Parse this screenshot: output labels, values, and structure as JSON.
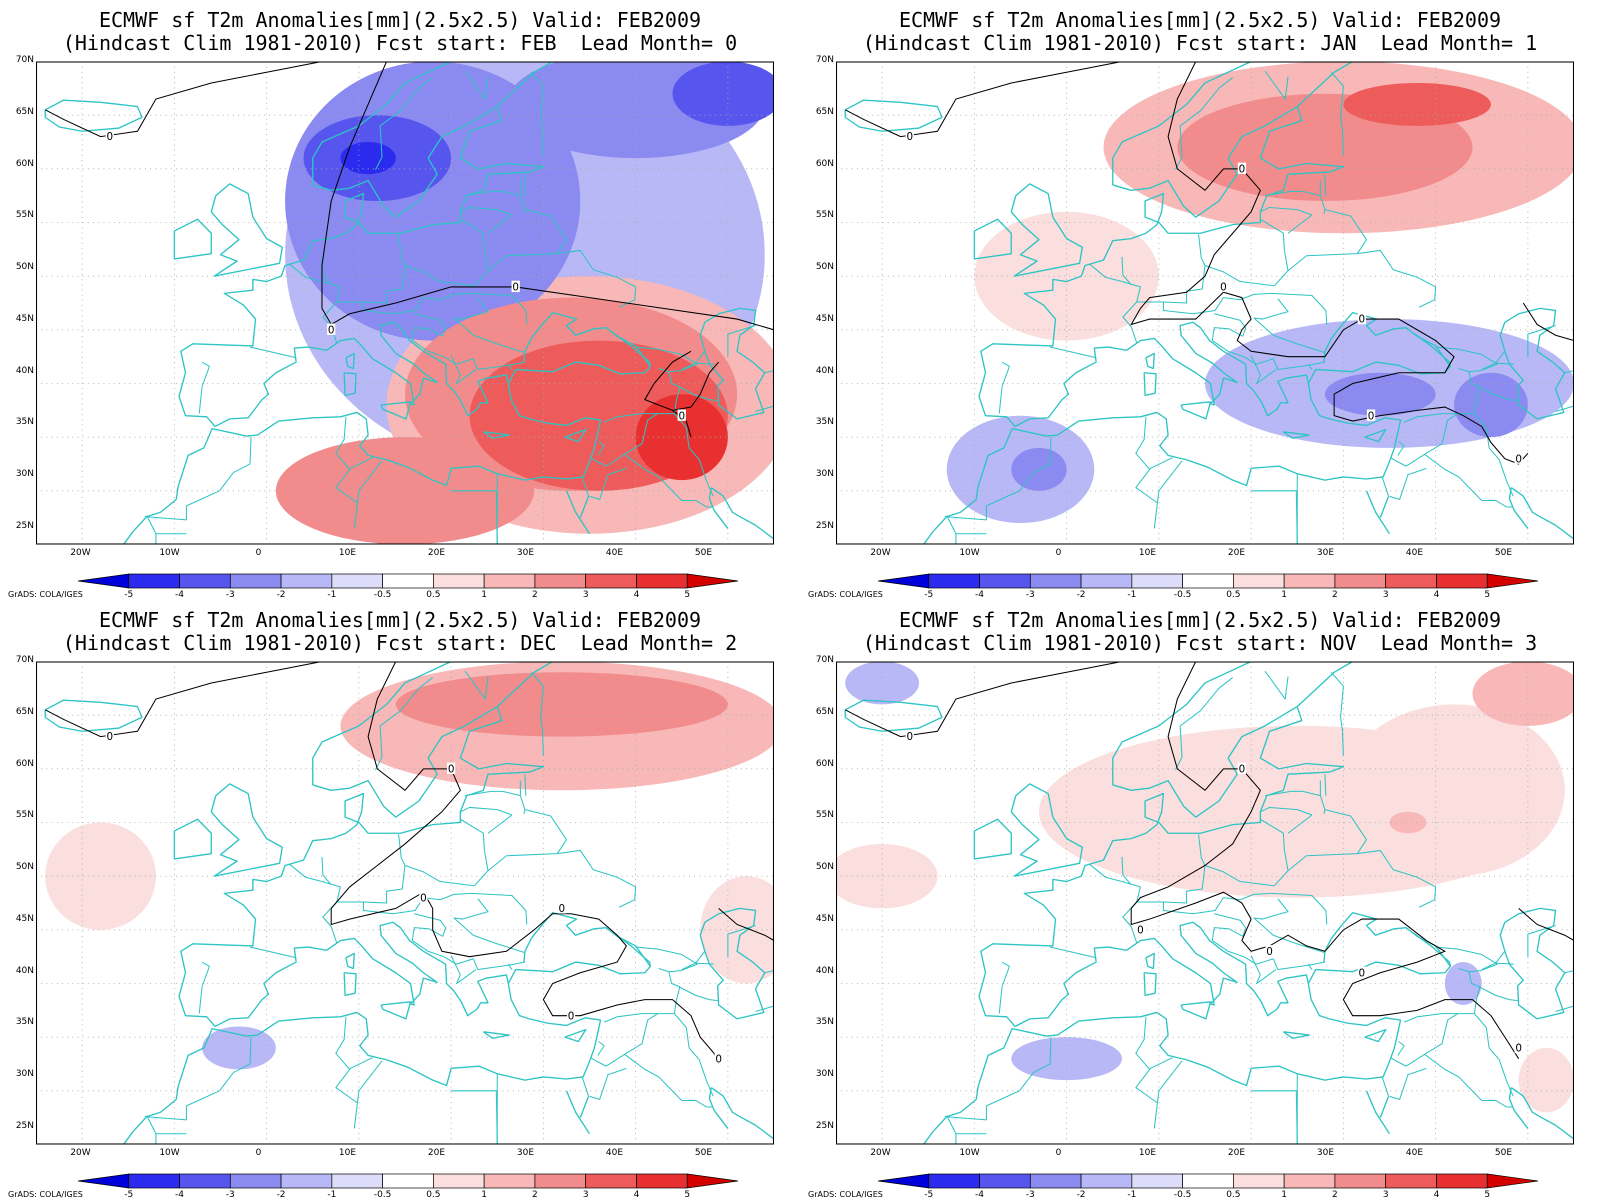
{
  "panels": [
    {
      "title_line1": "ECMWF sf T2m Anomalies[mm](2.5x2.5) Valid: FEB2009",
      "title_line2": "(Hindcast Clim 1981-2010) Fcst start: FEB  Lead Month= 0",
      "blobs": [
        {
          "cx": 28,
          "cy": 52,
          "rx": 26,
          "ry": 20,
          "level": -1
        },
        {
          "cx": 18,
          "cy": 57,
          "rx": 16,
          "ry": 13,
          "level": -2
        },
        {
          "cx": 12,
          "cy": 61,
          "rx": 8,
          "ry": 4,
          "level": -3
        },
        {
          "cx": 11,
          "cy": 61,
          "rx": 3,
          "ry": 1.5,
          "level": -4
        },
        {
          "cx": 40,
          "cy": 66,
          "rx": 14,
          "ry": 5,
          "level": -2
        },
        {
          "cx": 50,
          "cy": 67,
          "rx": 6,
          "ry": 3,
          "level": -3
        },
        {
          "cx": 35,
          "cy": 38,
          "rx": 22,
          "ry": 12,
          "level": 1
        },
        {
          "cx": 33,
          "cy": 39,
          "rx": 18,
          "ry": 9,
          "level": 2
        },
        {
          "cx": 36,
          "cy": 37,
          "rx": 14,
          "ry": 7,
          "level": 3
        },
        {
          "cx": 45,
          "cy": 35,
          "rx": 5,
          "ry": 4,
          "level": 4
        },
        {
          "cx": 15,
          "cy": 30,
          "rx": 14,
          "ry": 5,
          "level": 2
        }
      ],
      "zero_labels": [
        {
          "lon": -17,
          "lat": 63
        },
        {
          "lon": 7,
          "lat": 45
        },
        {
          "lon": 27,
          "lat": 49
        },
        {
          "lon": 45,
          "lat": 37
        }
      ]
    },
    {
      "title_line1": "ECMWF sf T2m Anomalies[mm](2.5x2.5) Valid: FEB2009",
      "title_line2": "(Hindcast Clim 1981-2010) Fcst start: JAN  Lead Month= 1",
      "blobs": [
        {
          "cx": 30,
          "cy": 62,
          "rx": 26,
          "ry": 8,
          "level": 1
        },
        {
          "cx": 28,
          "cy": 62,
          "rx": 16,
          "ry": 5,
          "level": 2
        },
        {
          "cx": 38,
          "cy": 66,
          "rx": 8,
          "ry": 2,
          "level": 3
        },
        {
          "cx": 0,
          "cy": 50,
          "rx": 10,
          "ry": 6,
          "level": 0.5
        },
        {
          "cx": 35,
          "cy": 40,
          "rx": 20,
          "ry": 6,
          "level": -1
        },
        {
          "cx": 34,
          "cy": 39,
          "rx": 6,
          "ry": 2,
          "level": -2
        },
        {
          "cx": 46,
          "cy": 38,
          "rx": 4,
          "ry": 3,
          "level": -2
        },
        {
          "cx": -5,
          "cy": 32,
          "rx": 8,
          "ry": 5,
          "level": -1
        },
        {
          "cx": -3,
          "cy": 32,
          "rx": 3,
          "ry": 2,
          "level": -2
        }
      ],
      "zero_labels": [
        {
          "lon": -17,
          "lat": 63
        },
        {
          "lon": 19,
          "lat": 60
        },
        {
          "lon": 17,
          "lat": 49
        },
        {
          "lon": 32,
          "lat": 46
        },
        {
          "lon": 33,
          "lat": 37
        },
        {
          "lon": 49,
          "lat": 33
        }
      ]
    },
    {
      "title_line1": "ECMWF sf T2m Anomalies[mm](2.5x2.5) Valid: FEB2009",
      "title_line2": "(Hindcast Clim 1981-2010) Fcst start: DEC  Lead Month= 2",
      "blobs": [
        {
          "cx": 32,
          "cy": 64,
          "rx": 24,
          "ry": 6,
          "level": 1
        },
        {
          "cx": 32,
          "cy": 66,
          "rx": 18,
          "ry": 3,
          "level": 2
        },
        {
          "cx": -18,
          "cy": 50,
          "rx": 6,
          "ry": 5,
          "level": 0.5
        },
        {
          "cx": 52,
          "cy": 45,
          "rx": 5,
          "ry": 5,
          "level": 0.5
        },
        {
          "cx": -3,
          "cy": 34,
          "rx": 4,
          "ry": 2,
          "level": -1
        }
      ],
      "zero_labels": [
        {
          "lon": -17,
          "lat": 63
        },
        {
          "lon": 20,
          "lat": 60
        },
        {
          "lon": 17,
          "lat": 48
        },
        {
          "lon": 32,
          "lat": 47
        },
        {
          "lon": 33,
          "lat": 37
        },
        {
          "lon": 49,
          "lat": 33
        }
      ]
    },
    {
      "title_line1": "ECMWF sf T2m Anomalies[mm](2.5x2.5) Valid: FEB2009",
      "title_line2": "(Hindcast Clim 1981-2010) Fcst start: NOV  Lead Month= 3",
      "blobs": [
        {
          "cx": 25,
          "cy": 56,
          "rx": 28,
          "ry": 8,
          "level": 0.5
        },
        {
          "cx": 42,
          "cy": 58,
          "rx": 12,
          "ry": 8,
          "level": 0.5
        },
        {
          "cx": 50,
          "cy": 67,
          "rx": 6,
          "ry": 3,
          "level": 1
        },
        {
          "cx": 37,
          "cy": 55,
          "rx": 2,
          "ry": 1,
          "level": 1
        },
        {
          "cx": -20,
          "cy": 68,
          "rx": 4,
          "ry": 2,
          "level": -1
        },
        {
          "cx": -20,
          "cy": 50,
          "rx": 6,
          "ry": 3,
          "level": 0.5
        },
        {
          "cx": 43,
          "cy": 40,
          "rx": 2,
          "ry": 2,
          "level": -1
        },
        {
          "cx": 0,
          "cy": 33,
          "rx": 6,
          "ry": 2,
          "level": -1
        },
        {
          "cx": 52,
          "cy": 31,
          "rx": 3,
          "ry": 3,
          "level": 0.5
        }
      ],
      "zero_labels": [
        {
          "lon": -17,
          "lat": 63
        },
        {
          "lon": 19,
          "lat": 60
        },
        {
          "lon": 8,
          "lat": 45
        },
        {
          "lon": 22,
          "lat": 43
        },
        {
          "lon": 32,
          "lat": 41
        },
        {
          "lon": 49,
          "lat": 34
        }
      ]
    }
  ],
  "lat_labels": [
    "70N",
    "65N",
    "60N",
    "55N",
    "50N",
    "45N",
    "40N",
    "35N",
    "30N",
    "25N"
  ],
  "lon_labels": [
    "20W",
    "10W",
    "0",
    "10E",
    "20E",
    "30E",
    "40E",
    "50E"
  ],
  "colorbar_labels": [
    "-5",
    "-4",
    "-3",
    "-2",
    "-1",
    "-0.5",
    "0.5",
    "1",
    "2",
    "3",
    "4",
    "5"
  ],
  "credit": "GrADS: COLA/IGES",
  "colors": {
    "ocean_lines": "#2ec4c4",
    "grid": "#aaaaaa",
    "bins": [
      "#0000d8",
      "#2b2bf0",
      "#5656ee",
      "#8a8af0",
      "#b8b8f6",
      "#ddddfa",
      "#ffffff",
      "#fbdede",
      "#f8b8b8",
      "#f28c8c",
      "#ee5b5b",
      "#e83030",
      "#d40000"
    ]
  },
  "extent": {
    "lon_min": -25,
    "lon_max": 55,
    "lat_min": 25,
    "lat_max": 70
  }
}
